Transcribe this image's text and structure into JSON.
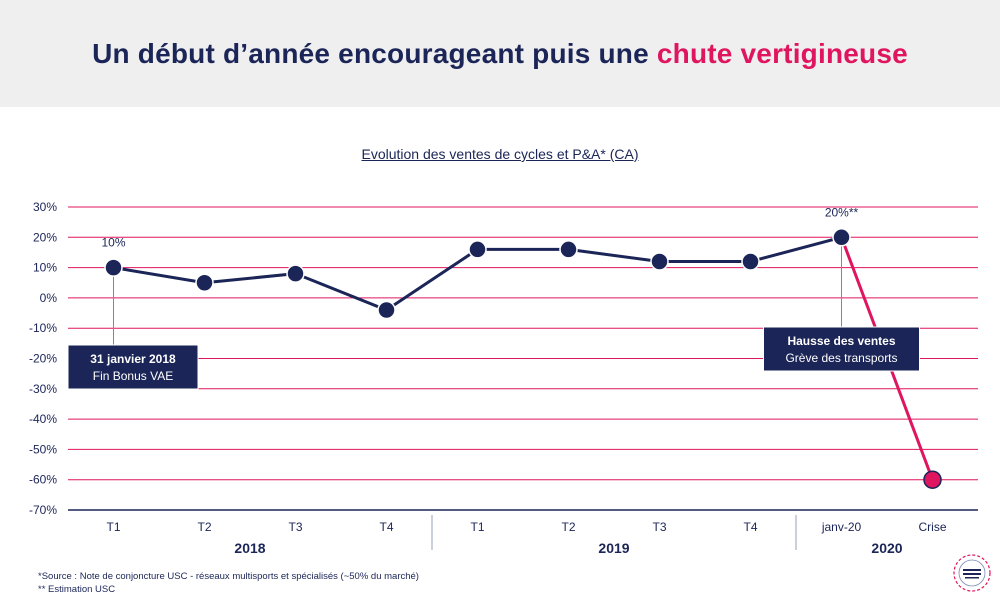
{
  "header": {
    "title_main": "Un début d’année encourageant puis une",
    "title_accent": "chute vertigineuse"
  },
  "colors": {
    "navy": "#1b2557",
    "pink": "#e0155f",
    "header_bg": "#efefef"
  },
  "chart_data": {
    "type": "line",
    "title": "Evolution des ventes de cycles et P&A* (CA)",
    "xlabel": "",
    "ylabel": "",
    "ylim": [
      -70,
      30
    ],
    "yticks": [
      30,
      20,
      10,
      0,
      -10,
      -20,
      -30,
      -40,
      -50,
      -60,
      -70
    ],
    "ytick_labels": [
      "30%",
      "20%",
      "10%",
      "0%",
      "-10%",
      "-20%",
      "-30%",
      "-40%",
      "-50%",
      "-60%",
      "-70%"
    ],
    "grid": true,
    "categories": [
      "T1",
      "T2",
      "T3",
      "T4",
      "T1",
      "T2",
      "T3",
      "T4",
      "janv-20",
      "Crise"
    ],
    "groups": [
      {
        "label": "2018",
        "span": [
          0,
          3
        ]
      },
      {
        "label": "2019",
        "span": [
          4,
          7
        ]
      },
      {
        "label": "2020",
        "span": [
          8,
          9
        ]
      }
    ],
    "series": [
      {
        "values": [
          10,
          5,
          8,
          -4,
          16,
          16,
          12,
          12,
          20,
          -60
        ]
      }
    ],
    "data_labels": [
      {
        "index": 0,
        "text": "10%"
      },
      {
        "index": 8,
        "text": "20%**"
      }
    ],
    "annotations": [
      {
        "index": 0,
        "bold": "31 janvier 2018",
        "text": "Fin Bonus VAE"
      },
      {
        "index": 8,
        "bold": "Hausse des ventes",
        "text": "Grève des transports"
      }
    ]
  },
  "footnotes": {
    "source": "*Source : Note de conjoncture USC - réseaux multisports et spécialisés (~50% du marché)",
    "estimate": "** Estimation USC"
  },
  "logo_icon": "union-sport-cycle-logo"
}
